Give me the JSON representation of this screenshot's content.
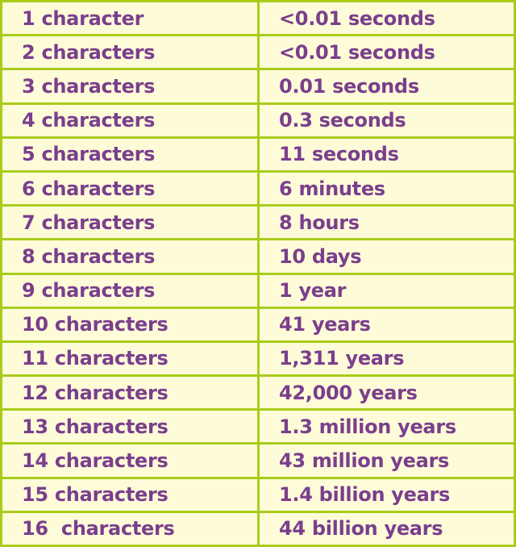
{
  "colors": {
    "border": "#a9cc1c",
    "background": "#fefbd9",
    "text": "#7a3f8c"
  },
  "rows": [
    {
      "length": "1 character",
      "time": "<0.01 seconds"
    },
    {
      "length": "2 characters",
      "time": "<0.01 seconds"
    },
    {
      "length": "3 characters",
      "time": "0.01 seconds"
    },
    {
      "length": "4 characters",
      "time": "0.3 seconds"
    },
    {
      "length": "5 characters",
      "time": "11 seconds"
    },
    {
      "length": "6 characters",
      "time": "6 minutes"
    },
    {
      "length": "7 characters",
      "time": "8 hours"
    },
    {
      "length": "8 characters",
      "time": "10 days"
    },
    {
      "length": "9 characters",
      "time": "1 year"
    },
    {
      "length": "10 characters",
      "time": "41 years"
    },
    {
      "length": "11 characters",
      "time": "1,311 years"
    },
    {
      "length": "12 characters",
      "time": "42,000 years"
    },
    {
      "length": "13 characters",
      "time": "1.3 million years"
    },
    {
      "length": "14 characters",
      "time": "43 million years"
    },
    {
      "length": "15 characters",
      "time": "1.4 billion years"
    },
    {
      "length": "16  characters",
      "time": "44 billion years"
    }
  ]
}
